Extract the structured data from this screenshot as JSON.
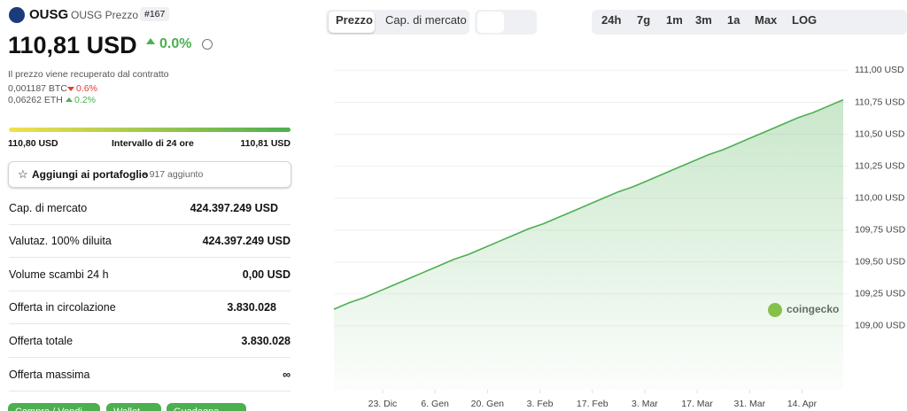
{
  "header": {
    "symbol": "OUSG",
    "name": "OUSG Prezzo",
    "rank": "#167",
    "price": "110,81 USD",
    "change": "0.0%",
    "note": "Il prezzo viene recuperato dal contratto",
    "btc": "0,001187 BTC",
    "btc_change": "0.6%",
    "eth": "0,06262 ETH",
    "eth_change": "0.2%"
  },
  "range": {
    "low": "110,80 USD",
    "label": "Intervallo di 24 ore",
    "high": "110,81 USD"
  },
  "portfolio": {
    "label": "Aggiungi ai portafoglio",
    "count": "• 917 aggiunto"
  },
  "stats": [
    [
      "Cap. di mercato",
      "424.397.249 USD"
    ],
    [
      "Valutaz. 100% diluita",
      "424.397.249 USD"
    ],
    [
      "Volume scambi 24 h",
      "0,00 USD"
    ],
    [
      "Offerta in circolazione",
      "3.830.028"
    ],
    [
      "Offerta totale",
      "3.830.028"
    ],
    [
      "Offerta massima",
      "∞"
    ]
  ],
  "buttons": [
    "Compra / Vendi",
    "Wallet",
    "Guadagna"
  ],
  "tabs": [
    "Prezzo",
    "Cap. di mercato"
  ],
  "ranges": [
    "24h",
    "7g",
    "1m",
    "3m",
    "1a",
    "Max",
    "LOG"
  ],
  "watermark": "coingecko",
  "chart_data": {
    "type": "line",
    "color": "#4caf50",
    "x": [
      0,
      4,
      8,
      12,
      16,
      20,
      24,
      28,
      32,
      36,
      40,
      44,
      48,
      52,
      56,
      60,
      64,
      68,
      72,
      76,
      80,
      84,
      88,
      92,
      96,
      100,
      104,
      108,
      112,
      116,
      120,
      124,
      128,
      132,
      136
    ],
    "values": [
      109.13,
      109.18,
      109.22,
      109.27,
      109.32,
      109.37,
      109.42,
      109.47,
      109.52,
      109.56,
      109.61,
      109.66,
      109.71,
      109.76,
      109.8,
      109.85,
      109.9,
      109.95,
      110.0,
      110.05,
      110.09,
      110.14,
      110.19,
      110.24,
      110.29,
      110.34,
      110.38,
      110.43,
      110.48,
      110.53,
      110.58,
      110.63,
      110.67,
      110.72,
      110.77
    ],
    "xlim": [
      0,
      136
    ],
    "xticks": [
      {
        "value": 13,
        "label": "23. Dic"
      },
      {
        "value": 27,
        "label": "6. Gen"
      },
      {
        "value": 41,
        "label": "20. Gen"
      },
      {
        "value": 55,
        "label": "3. Feb"
      },
      {
        "value": 69,
        "label": "17. Feb"
      },
      {
        "value": 83,
        "label": "3. Mar"
      },
      {
        "value": 97,
        "label": "17. Mar"
      },
      {
        "value": 111,
        "label": "31. Mar"
      },
      {
        "value": 125,
        "label": "14. Apr"
      }
    ],
    "ylim": [
      108.5,
      111.1
    ],
    "yticks": [
      {
        "value": 109,
        "label": "109,00 USD"
      },
      {
        "value": 109.25,
        "label": "109,25 USD"
      },
      {
        "value": 109.5,
        "label": "109,50 USD"
      },
      {
        "value": 109.75,
        "label": "109,75 USD"
      },
      {
        "value": 110,
        "label": "110,00 USD"
      },
      {
        "value": 110.25,
        "label": "110,25 USD"
      },
      {
        "value": 110.5,
        "label": "110,50 USD"
      },
      {
        "value": 110.75,
        "label": "110,75 USD"
      },
      {
        "value": 111,
        "label": "111,00 USD"
      }
    ],
    "grid": true
  }
}
